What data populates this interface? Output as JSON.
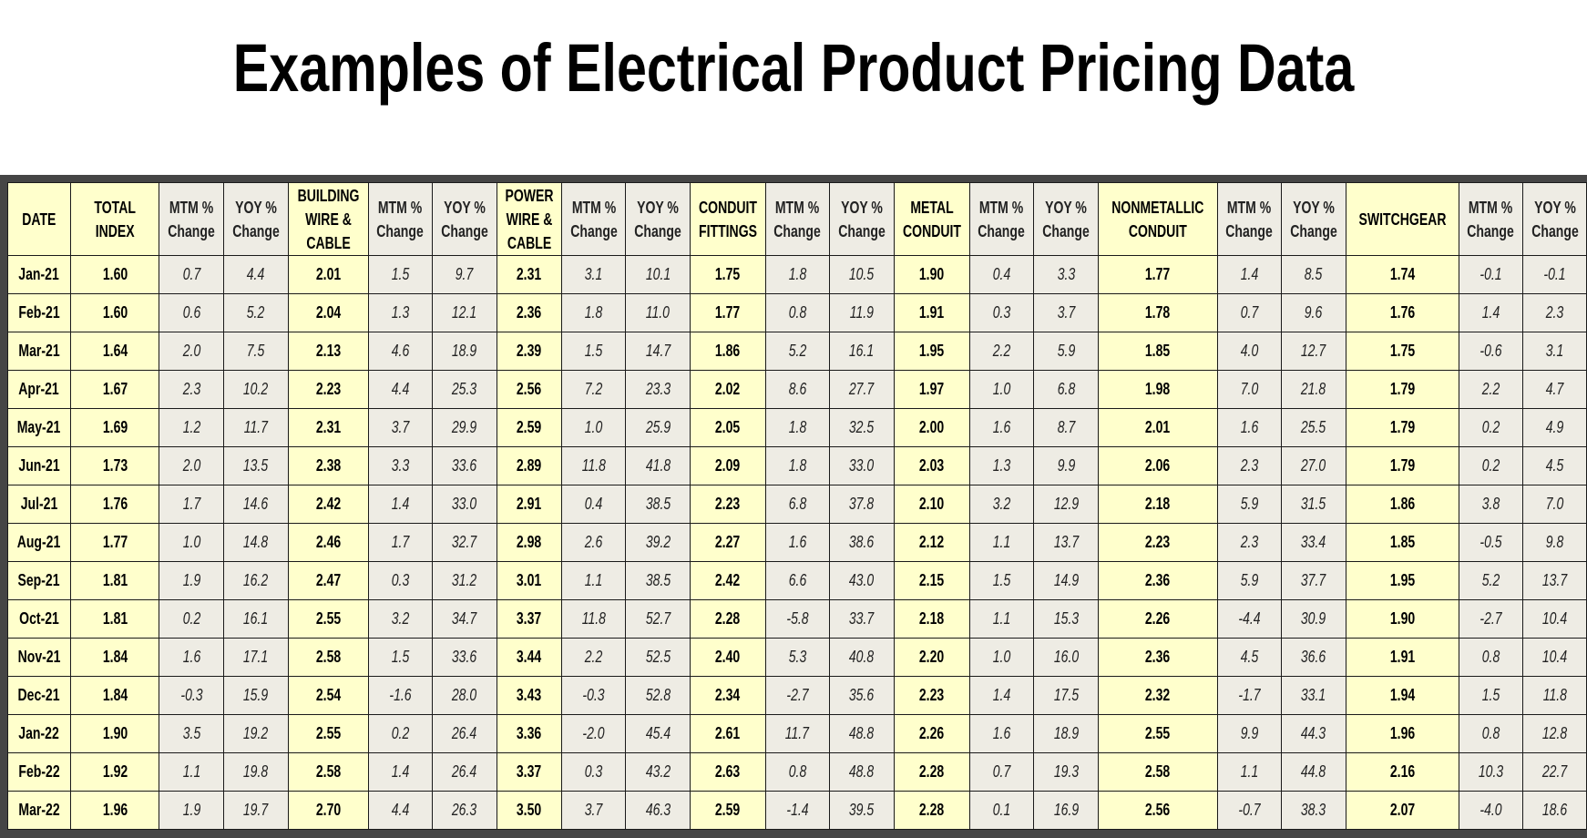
{
  "title": "Examples of Electrical Product Pricing Data",
  "colors": {
    "index_cell": "#ffffcc",
    "change_cell": "#eeece4",
    "frame": "#454545"
  },
  "table": {
    "columns": [
      {
        "label": "DATE",
        "kind": "date"
      },
      {
        "label": "TOTAL INDEX",
        "kind": "idx"
      },
      {
        "label": "MTM %\nChange",
        "kind": "pct"
      },
      {
        "label": "YOY %\nChange",
        "kind": "pct"
      },
      {
        "label": "BUILDING\nWIRE &\nCABLE",
        "kind": "idx"
      },
      {
        "label": "MTM %\nChange",
        "kind": "pct"
      },
      {
        "label": "YOY %\nChange",
        "kind": "pct"
      },
      {
        "label": "POWER\nWIRE &\nCABLE",
        "kind": "idx"
      },
      {
        "label": "MTM %\nChange",
        "kind": "pct"
      },
      {
        "label": "YOY %\nChange",
        "kind": "pct"
      },
      {
        "label": "CONDUIT\nFITTINGS",
        "kind": "idx"
      },
      {
        "label": "MTM %\nChange",
        "kind": "pct"
      },
      {
        "label": "YOY %\nChange",
        "kind": "pct"
      },
      {
        "label": "METAL\nCONDUIT",
        "kind": "idx"
      },
      {
        "label": "MTM %\nChange",
        "kind": "pct"
      },
      {
        "label": "YOY %\nChange",
        "kind": "pct"
      },
      {
        "label": "NONMETALLIC\nCONDUIT",
        "kind": "idx"
      },
      {
        "label": "MTM %\nChange",
        "kind": "pct"
      },
      {
        "label": "YOY %\nChange",
        "kind": "pct"
      },
      {
        "label": "SWITCHGEAR",
        "kind": "idx"
      },
      {
        "label": "MTM %\nChange",
        "kind": "pct"
      },
      {
        "label": "YOY %\nChange",
        "kind": "pct"
      }
    ],
    "rows": [
      [
        "Jan-21",
        "1.60",
        "0.7",
        "4.4",
        "2.01",
        "1.5",
        "9.7",
        "2.31",
        "3.1",
        "10.1",
        "1.75",
        "1.8",
        "10.5",
        "1.90",
        "0.4",
        "3.3",
        "1.77",
        "1.4",
        "8.5",
        "1.74",
        "-0.1",
        "-0.1"
      ],
      [
        "Feb-21",
        "1.60",
        "0.6",
        "5.2",
        "2.04",
        "1.3",
        "12.1",
        "2.36",
        "1.8",
        "11.0",
        "1.77",
        "0.8",
        "11.9",
        "1.91",
        "0.3",
        "3.7",
        "1.78",
        "0.7",
        "9.6",
        "1.76",
        "1.4",
        "2.3"
      ],
      [
        "Mar-21",
        "1.64",
        "2.0",
        "7.5",
        "2.13",
        "4.6",
        "18.9",
        "2.39",
        "1.5",
        "14.7",
        "1.86",
        "5.2",
        "16.1",
        "1.95",
        "2.2",
        "5.9",
        "1.85",
        "4.0",
        "12.7",
        "1.75",
        "-0.6",
        "3.1"
      ],
      [
        "Apr-21",
        "1.67",
        "2.3",
        "10.2",
        "2.23",
        "4.4",
        "25.3",
        "2.56",
        "7.2",
        "23.3",
        "2.02",
        "8.6",
        "27.7",
        "1.97",
        "1.0",
        "6.8",
        "1.98",
        "7.0",
        "21.8",
        "1.79",
        "2.2",
        "4.7"
      ],
      [
        "May-21",
        "1.69",
        "1.2",
        "11.7",
        "2.31",
        "3.7",
        "29.9",
        "2.59",
        "1.0",
        "25.9",
        "2.05",
        "1.8",
        "32.5",
        "2.00",
        "1.6",
        "8.7",
        "2.01",
        "1.6",
        "25.5",
        "1.79",
        "0.2",
        "4.9"
      ],
      [
        "Jun-21",
        "1.73",
        "2.0",
        "13.5",
        "2.38",
        "3.3",
        "33.6",
        "2.89",
        "11.8",
        "41.8",
        "2.09",
        "1.8",
        "33.0",
        "2.03",
        "1.3",
        "9.9",
        "2.06",
        "2.3",
        "27.0",
        "1.79",
        "0.2",
        "4.5"
      ],
      [
        "Jul-21",
        "1.76",
        "1.7",
        "14.6",
        "2.42",
        "1.4",
        "33.0",
        "2.91",
        "0.4",
        "38.5",
        "2.23",
        "6.8",
        "37.8",
        "2.10",
        "3.2",
        "12.9",
        "2.18",
        "5.9",
        "31.5",
        "1.86",
        "3.8",
        "7.0"
      ],
      [
        "Aug-21",
        "1.77",
        "1.0",
        "14.8",
        "2.46",
        "1.7",
        "32.7",
        "2.98",
        "2.6",
        "39.2",
        "2.27",
        "1.6",
        "38.6",
        "2.12",
        "1.1",
        "13.7",
        "2.23",
        "2.3",
        "33.4",
        "1.85",
        "-0.5",
        "9.8"
      ],
      [
        "Sep-21",
        "1.81",
        "1.9",
        "16.2",
        "2.47",
        "0.3",
        "31.2",
        "3.01",
        "1.1",
        "38.5",
        "2.42",
        "6.6",
        "43.0",
        "2.15",
        "1.5",
        "14.9",
        "2.36",
        "5.9",
        "37.7",
        "1.95",
        "5.2",
        "13.7"
      ],
      [
        "Oct-21",
        "1.81",
        "0.2",
        "16.1",
        "2.55",
        "3.2",
        "34.7",
        "3.37",
        "11.8",
        "52.7",
        "2.28",
        "-5.8",
        "33.7",
        "2.18",
        "1.1",
        "15.3",
        "2.26",
        "-4.4",
        "30.9",
        "1.90",
        "-2.7",
        "10.4"
      ],
      [
        "Nov-21",
        "1.84",
        "1.6",
        "17.1",
        "2.58",
        "1.5",
        "33.6",
        "3.44",
        "2.2",
        "52.5",
        "2.40",
        "5.3",
        "40.8",
        "2.20",
        "1.0",
        "16.0",
        "2.36",
        "4.5",
        "36.6",
        "1.91",
        "0.8",
        "10.4"
      ],
      [
        "Dec-21",
        "1.84",
        "-0.3",
        "15.9",
        "2.54",
        "-1.6",
        "28.0",
        "3.43",
        "-0.3",
        "52.8",
        "2.34",
        "-2.7",
        "35.6",
        "2.23",
        "1.4",
        "17.5",
        "2.32",
        "-1.7",
        "33.1",
        "1.94",
        "1.5",
        "11.8"
      ],
      [
        "Jan-22",
        "1.90",
        "3.5",
        "19.2",
        "2.55",
        "0.2",
        "26.4",
        "3.36",
        "-2.0",
        "45.4",
        "2.61",
        "11.7",
        "48.8",
        "2.26",
        "1.6",
        "18.9",
        "2.55",
        "9.9",
        "44.3",
        "1.96",
        "0.8",
        "12.8"
      ],
      [
        "Feb-22",
        "1.92",
        "1.1",
        "19.8",
        "2.58",
        "1.4",
        "26.4",
        "3.37",
        "0.3",
        "43.2",
        "2.63",
        "0.8",
        "48.8",
        "2.28",
        "0.7",
        "19.3",
        "2.58",
        "1.1",
        "44.8",
        "2.16",
        "10.3",
        "22.7"
      ],
      [
        "Mar-22",
        "1.96",
        "1.9",
        "19.7",
        "2.70",
        "4.4",
        "26.3",
        "3.50",
        "3.7",
        "46.3",
        "2.59",
        "-1.4",
        "39.5",
        "2.28",
        "0.1",
        "16.9",
        "2.56",
        "-0.7",
        "38.3",
        "2.07",
        "-4.0",
        "18.6"
      ]
    ]
  }
}
